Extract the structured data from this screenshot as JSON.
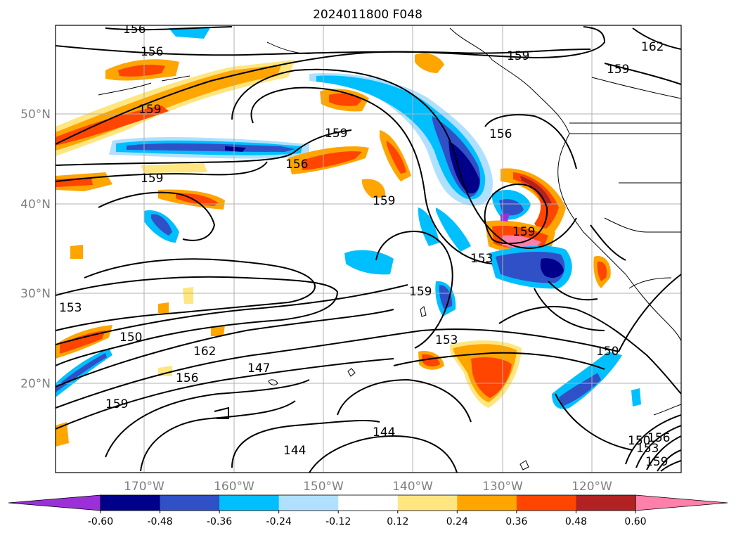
{
  "map": {
    "title": "2024011800 F048",
    "lat_labels": [
      "50°N",
      "40°N",
      "30°N",
      "20°N"
    ],
    "lon_labels": [
      "170°W",
      "160°W",
      "150°W",
      "140°W",
      "130°W",
      "120°W"
    ],
    "contour_labels": [
      "156",
      "156",
      "159",
      "159",
      "156",
      "159",
      "159",
      "159",
      "162",
      "159",
      "159",
      "153",
      "156",
      "153",
      "159",
      "153",
      "150",
      "162",
      "156",
      "147",
      "159",
      "150",
      "144",
      "144",
      "150",
      "153",
      "156",
      "159"
    ],
    "colorbar": {
      "tick_labels": [
        "-0.60",
        "-0.48",
        "-0.36",
        "-0.24",
        "-0.12",
        "0.12",
        "0.24",
        "0.36",
        "0.48",
        "0.60"
      ],
      "colors": [
        "#9b30d9",
        "#00008b",
        "#3050c8",
        "#00bfff",
        "#b0e0ff",
        "#ffffff",
        "#ffe680",
        "#ffa500",
        "#ff4500",
        "#b22222",
        "#ff80aa"
      ],
      "extend": "both"
    }
  }
}
